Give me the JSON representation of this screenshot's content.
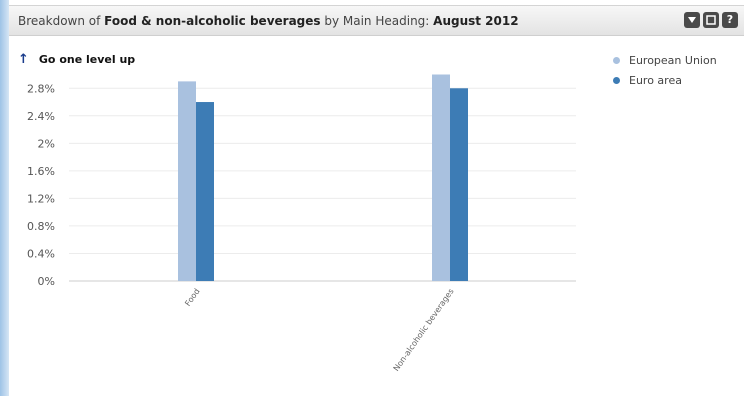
{
  "header": {
    "title_prefix": "Breakdown of ",
    "title_subject": "Food & non-alcoholic beverages",
    "title_mid": " by Main Heading: ",
    "title_period": "August 2012",
    "buttons": [
      "filter-icon",
      "maximize-icon",
      "help-icon"
    ],
    "help_glyph": "?"
  },
  "nav": {
    "up_arrow": "↑",
    "up_label": "Go one level up"
  },
  "colors": {
    "european_union": "#a9c1df",
    "euro_area": "#3d7cb5"
  },
  "chart_data": {
    "type": "bar",
    "categories": [
      "Food",
      "Non-alcoholic beverages"
    ],
    "series": [
      {
        "name": "European Union",
        "values": [
          2.9,
          3.0
        ]
      },
      {
        "name": "Euro area",
        "values": [
          2.6,
          2.8
        ]
      }
    ],
    "ylim": [
      0,
      3.0
    ],
    "yticks": [
      "0%",
      "0.4%",
      "0.8%",
      "1.2%",
      "1.6%",
      "2%",
      "2.4%",
      "2.8%"
    ],
    "ytick_values": [
      0,
      0.4,
      0.8,
      1.2,
      1.6,
      2.0,
      2.4,
      2.8
    ],
    "grid": true,
    "legend_position": "top-right"
  }
}
